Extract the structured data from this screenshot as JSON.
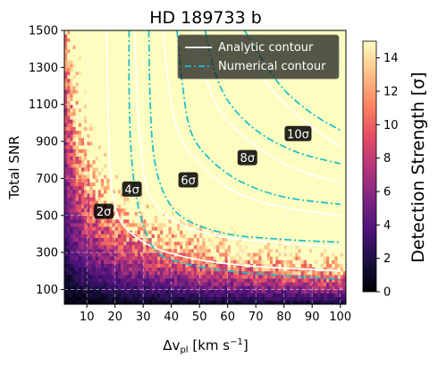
{
  "chart_data": {
    "type": "heatmap",
    "title": "HD 189733 b",
    "xlabel_main": "Δv",
    "xlabel_sub": "pl",
    "xlabel_unit": " [km s",
    "xlabel_exp": "−1",
    "xlabel_close": "]",
    "ylabel": "Total SNR",
    "xlim": [
      2,
      102
    ],
    "ylim": [
      20,
      1500
    ],
    "x_ticks": [
      10,
      20,
      30,
      40,
      50,
      60,
      70,
      80,
      90,
      100
    ],
    "y_ticks": [
      100,
      300,
      500,
      700,
      900,
      1100,
      1300,
      1500
    ],
    "grid": true,
    "colorbar": {
      "label": "Detection Strength [σ]",
      "range": [
        0,
        15
      ],
      "ticks": [
        0,
        2,
        4,
        6,
        8,
        10,
        12,
        14
      ],
      "colormap": "magma"
    },
    "heatmap_model": "detection strength ≈ 0.2 · SNR · Δv^0.55 / 40 (with noise)",
    "legend": {
      "placement": "top-right",
      "entries": [
        {
          "label": "Analytic contour",
          "style": "solid",
          "color": "#ffffff"
        },
        {
          "label": "Numerical contour",
          "style": "dashdot",
          "color": "#17becf"
        }
      ]
    },
    "series": [
      {
        "sigma": 2,
        "style": "analytic",
        "points": [
          [
            17,
            1500
          ],
          [
            17.5,
            1100
          ],
          [
            18.5,
            700
          ],
          [
            21,
            500
          ],
          [
            26,
            400
          ],
          [
            35,
            320
          ],
          [
            50,
            260
          ],
          [
            70,
            225
          ],
          [
            100,
            200
          ]
        ]
      },
      {
        "sigma": 4,
        "style": "analytic",
        "points": [
          [
            27,
            1500
          ],
          [
            28,
            1100
          ],
          [
            30.5,
            700
          ],
          [
            35,
            550
          ],
          [
            45,
            440
          ],
          [
            60,
            380
          ],
          [
            80,
            350
          ],
          [
            100,
            330
          ]
        ]
      },
      {
        "sigma": 6,
        "style": "analytic",
        "points": [
          [
            37,
            1500
          ],
          [
            40,
            1100
          ],
          [
            44,
            900
          ],
          [
            50,
            780
          ],
          [
            60,
            650
          ],
          [
            75,
            560
          ],
          [
            90,
            520
          ],
          [
            100,
            500
          ]
        ]
      },
      {
        "sigma": 8,
        "style": "analytic",
        "points": [
          [
            48,
            1500
          ],
          [
            52,
            1250
          ],
          [
            58,
            1050
          ],
          [
            68,
            900
          ],
          [
            80,
            780
          ],
          [
            90,
            720
          ],
          [
            100,
            680
          ]
        ]
      },
      {
        "sigma": 10,
        "style": "analytic",
        "points": [
          [
            64,
            1500
          ],
          [
            70,
            1300
          ],
          [
            78,
            1140
          ],
          [
            88,
            1000
          ],
          [
            100,
            870
          ]
        ]
      },
      {
        "sigma": 2,
        "style": "numerical",
        "points": [
          [
            25,
            1500
          ],
          [
            25,
            1200
          ],
          [
            25.5,
            900
          ],
          [
            27,
            650
          ],
          [
            30,
            450
          ],
          [
            35,
            300
          ],
          [
            45,
            240
          ],
          [
            60,
            200
          ],
          [
            80,
            175
          ],
          [
            100,
            155
          ]
        ]
      },
      {
        "sigma": 4,
        "style": "numerical",
        "points": [
          [
            32,
            1500
          ],
          [
            32.5,
            1100
          ],
          [
            34,
            800
          ],
          [
            38,
            600
          ],
          [
            45,
            480
          ],
          [
            60,
            400
          ],
          [
            80,
            370
          ],
          [
            100,
            355
          ]
        ]
      },
      {
        "sigma": 6,
        "style": "numerical",
        "points": [
          [
            42,
            1500
          ],
          [
            44,
            1200
          ],
          [
            47,
            950
          ],
          [
            54,
            800
          ],
          [
            65,
            680
          ],
          [
            80,
            600
          ],
          [
            100,
            560
          ]
        ]
      },
      {
        "sigma": 8,
        "style": "numerical",
        "points": [
          [
            52,
            1500
          ],
          [
            56,
            1250
          ],
          [
            62,
            1080
          ],
          [
            72,
            940
          ],
          [
            85,
            840
          ],
          [
            100,
            780
          ]
        ]
      },
      {
        "sigma": 10,
        "style": "numerical",
        "points": [
          [
            66,
            1500
          ],
          [
            72,
            1350
          ],
          [
            80,
            1180
          ],
          [
            90,
            1050
          ],
          [
            100,
            960
          ]
        ]
      }
    ],
    "annotations": [
      {
        "text": "2σ",
        "x": 16,
        "y": 520
      },
      {
        "text": "4σ",
        "x": 26,
        "y": 640
      },
      {
        "text": "6σ",
        "x": 46,
        "y": 690
      },
      {
        "text": "8σ",
        "x": 67,
        "y": 810
      },
      {
        "text": "10σ",
        "x": 85,
        "y": 940
      }
    ]
  }
}
